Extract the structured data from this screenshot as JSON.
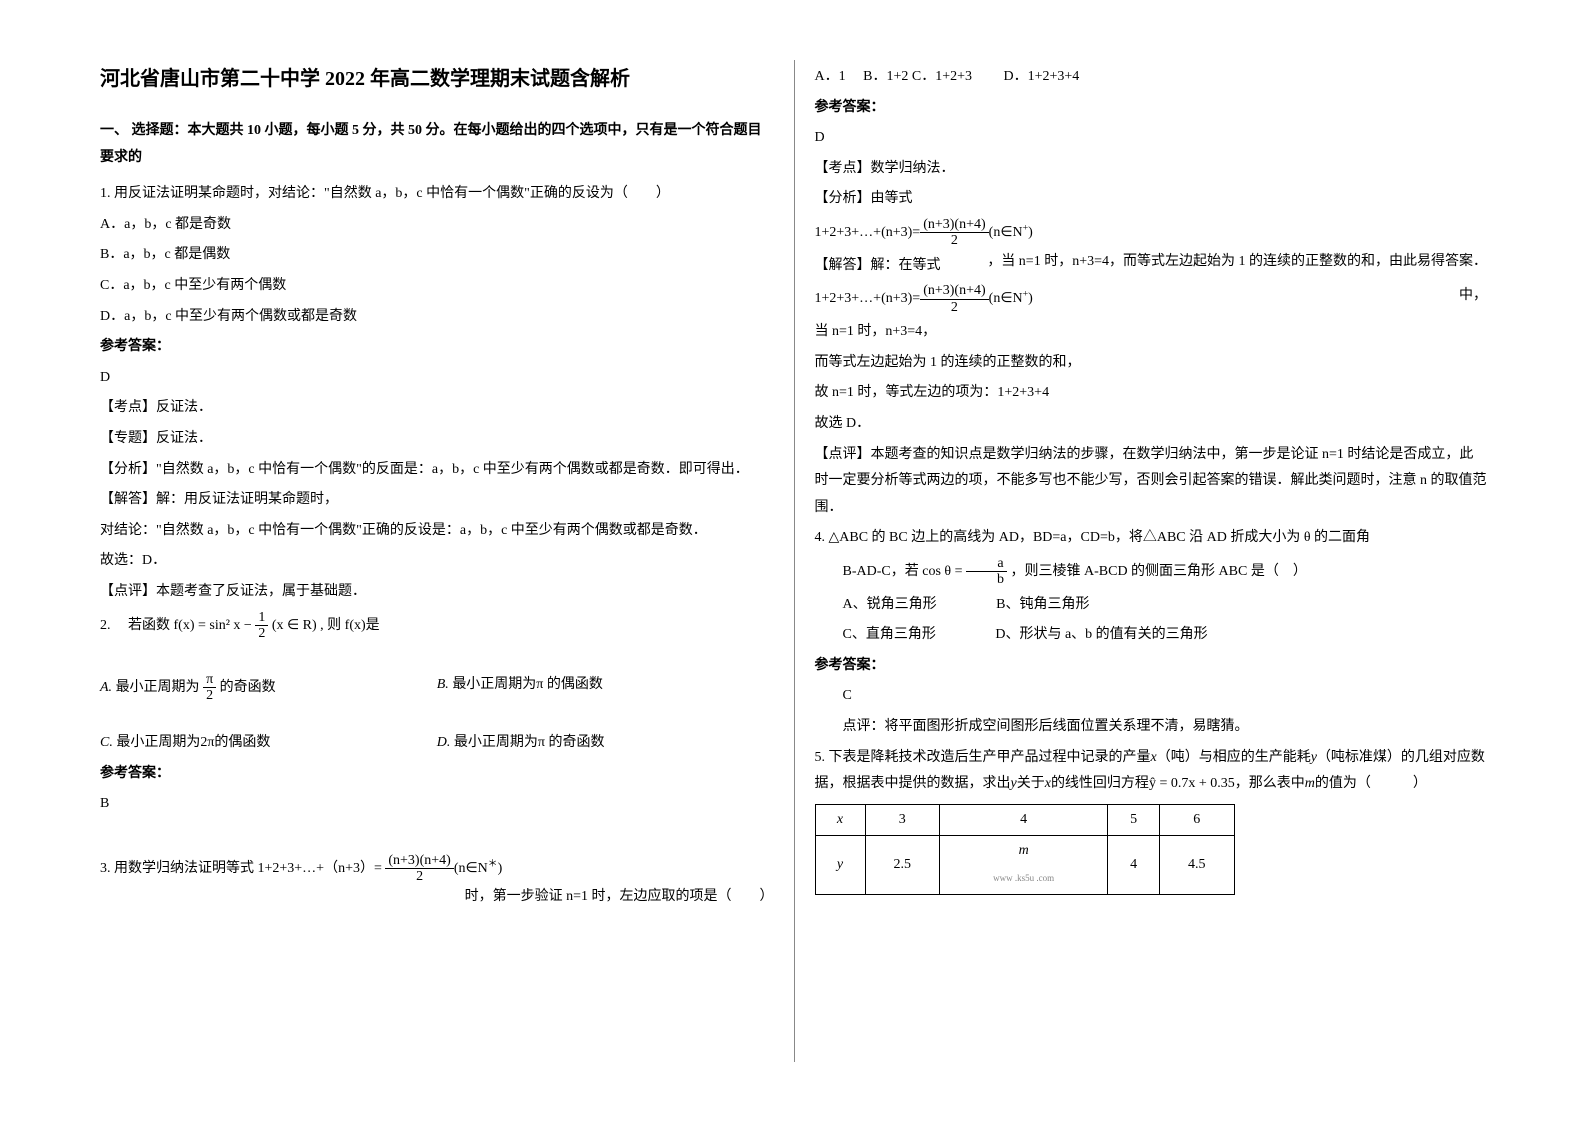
{
  "title": "河北省唐山市第二十中学 2022 年高二数学理期末试题含解析",
  "section1": "一、 选择题：本大题共 10 小题，每小题 5 分，共 50 分。在每小题给出的四个选项中，只有是一个符合题目要求的",
  "q1": {
    "stem": "1. 用反证法证明某命题时，对结论：\"自然数 a，b，c 中恰有一个偶数\"正确的反设为（　　）",
    "optA": "A．a，b，c 都是奇数",
    "optB": "B．a，b，c 都是偶数",
    "optC": "C．a，b，c 中至少有两个偶数",
    "optD": "D．a，b，c 中至少有两个偶数或都是奇数",
    "ans_label": "参考答案：",
    "ans": "D",
    "kd_label": "【考点】反证法．",
    "zt_label": "【专题】反证法．",
    "fx": "【分析】\"自然数 a，b，c 中恰有一个偶数\"的反面是：a，b，c 中至少有两个偶数或都是奇数．即可得出．",
    "jd1": "【解答】解：用反证法证明某命题时，",
    "jd2": "对结论：\"自然数 a，b，c 中恰有一个偶数\"正确的反设是：a，b，c 中至少有两个偶数或都是奇数．",
    "jd3": "故选：D．",
    "dp": "【点评】本题考查了反证法，属于基础题．"
  },
  "q2": {
    "stem_pre": "2. 　若函数",
    "stem_post": ", 则 f(x)是",
    "optA_pre": "最小正周期为",
    "optA_post": "的奇函数",
    "optB": "最小正周期为π 的偶函数",
    "optC": "最小正周期为2π的偶函数",
    "optD": "最小正周期为π 的奇函数",
    "ans_label": "参考答案：",
    "ans": "B"
  },
  "q3": {
    "stem_pre": "3. 用数学归纳法证明等式 1+2+3+…+（n+3）=",
    "stem_post": "时，第一步验证 n=1 时，左边应取的项是（　　）",
    "optA": "A．1",
    "optB": "B．1+2",
    "optC": "C．1+2+3",
    "optD": "D．1+2+3+4",
    "ans_label": "参考答案：",
    "ans": "D",
    "kd": "【考点】数学归纳法．",
    "fx": "【分析】由等式",
    "fx2": "，当 n=1 时，n+3=4，而等式左边起始为 1 的连续的正整数的和，由此易得答案．",
    "jd1": "【解答】解：在等式",
    "jd2": "中，",
    "jd3": "当 n=1 时，n+3=4，",
    "jd4": "而等式左边起始为 1 的连续的正整数的和，",
    "jd5": "故 n=1 时，等式左边的项为：1+2+3+4",
    "jd6": "故选 D．",
    "dp": "【点评】本题考查的知识点是数学归纳法的步骤，在数学归纳法中，第一步是论证 n=1 时结论是否成立，此时一定要分析等式两边的项，不能多写也不能少写，否则会引起答案的错误．解此类问题时，注意 n 的取值范围．"
  },
  "q4": {
    "stem1": "4. △ABC 的 BC 边上的高线为 AD，BD=a，CD=b，将△ABC 沿 AD 折成大小为 θ 的二面角",
    "stem2_pre": "B-AD-C，若",
    "stem2_post": "，则三棱锥 A-BCD 的侧面三角形 ABC 是（　）",
    "optA": "A、锐角三角形",
    "optB": "B、钝角三角形",
    "optC": "C、直角三角形",
    "optD": "D、形状与 a、b 的值有关的三角形",
    "ans_label": "参考答案：",
    "ans": "C",
    "dp": "点评：将平面图形折成空间图形后线面位置关系理不清，易瞎猜。"
  },
  "q5": {
    "stem_pre": "5. 下表是降耗技术改造后生产甲产品过程中记录的产量",
    "stem_mid1": "（吨）与相应的生产能耗",
    "stem_mid2": "（吨标准煤）的几组对应数据，根据表中提供的数据，求出",
    "stem_mid3": "关于",
    "stem_mid4": "的线性回归方程",
    "stem_post": "，那么表中",
    "stem_end": "的值为（　　　）",
    "table": {
      "r1": [
        "x",
        "3",
        "4",
        "5",
        "6"
      ],
      "r2": [
        "y",
        "2.5",
        "m",
        "4",
        "4.5"
      ]
    },
    "watermark": "www .ks5u .com"
  },
  "formula_nat": "(n∈N",
  "formula_frac_num": "(n+3)(n+4)",
  "formula_frac_den": "2",
  "formula_sum": "1+2+3+…+(n+3)=",
  "f_fx": "f(x) = sin² x − ",
  "f_half_num": "1",
  "f_half_den": "2",
  "f_xr": " (x ∈ R)",
  "pi": "π",
  "pi2_den": "2",
  "cos": "cos θ = ",
  "ab_num": "a",
  "ab_den": "b",
  "reg": "ŷ = 0.7x + 0.35",
  "sup_star": "＊",
  "sup_plus": "+",
  "close_paren": ")",
  "varx": "x",
  "vary": "y",
  "varm": "m",
  "labA": "A.",
  "labB": "B.",
  "labC": "C.",
  "labD": "D."
}
